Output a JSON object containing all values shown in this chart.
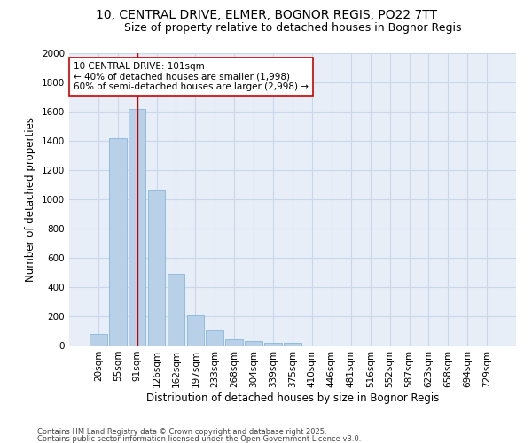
{
  "title": "10, CENTRAL DRIVE, ELMER, BOGNOR REGIS, PO22 7TT",
  "subtitle": "Size of property relative to detached houses in Bognor Regis",
  "xlabel": "Distribution of detached houses by size in Bognor Regis",
  "ylabel": "Number of detached properties",
  "bins": [
    "20sqm",
    "55sqm",
    "91sqm",
    "126sqm",
    "162sqm",
    "197sqm",
    "233sqm",
    "268sqm",
    "304sqm",
    "339sqm",
    "375sqm",
    "410sqm",
    "446sqm",
    "481sqm",
    "516sqm",
    "552sqm",
    "587sqm",
    "623sqm",
    "658sqm",
    "694sqm",
    "729sqm"
  ],
  "values": [
    80,
    1420,
    1620,
    1060,
    490,
    205,
    105,
    40,
    30,
    20,
    20,
    0,
    0,
    0,
    0,
    0,
    0,
    0,
    0,
    0,
    0
  ],
  "bar_color": "#b8d0e8",
  "bar_edge_color": "#7aafd4",
  "vline_x_idx": 2,
  "vline_color": "#cc0000",
  "ylim": [
    0,
    2000
  ],
  "yticks": [
    0,
    200,
    400,
    600,
    800,
    1000,
    1200,
    1400,
    1600,
    1800,
    2000
  ],
  "annotation_title": "10 CENTRAL DRIVE: 101sqm",
  "annotation_line1": "← 40% of detached houses are smaller (1,998)",
  "annotation_line2": "60% of semi-detached houses are larger (2,998) →",
  "annotation_box_color": "#ffffff",
  "annotation_box_edge": "#cc0000",
  "grid_color": "#c8d8e8",
  "bg_color": "#e8eef8",
  "footer1": "Contains HM Land Registry data © Crown copyright and database right 2025.",
  "footer2": "Contains public sector information licensed under the Open Government Licence v3.0.",
  "title_fontsize": 10,
  "subtitle_fontsize": 9,
  "axis_label_fontsize": 8.5,
  "tick_fontsize": 7.5,
  "annotation_fontsize": 7.5,
  "footer_fontsize": 6
}
